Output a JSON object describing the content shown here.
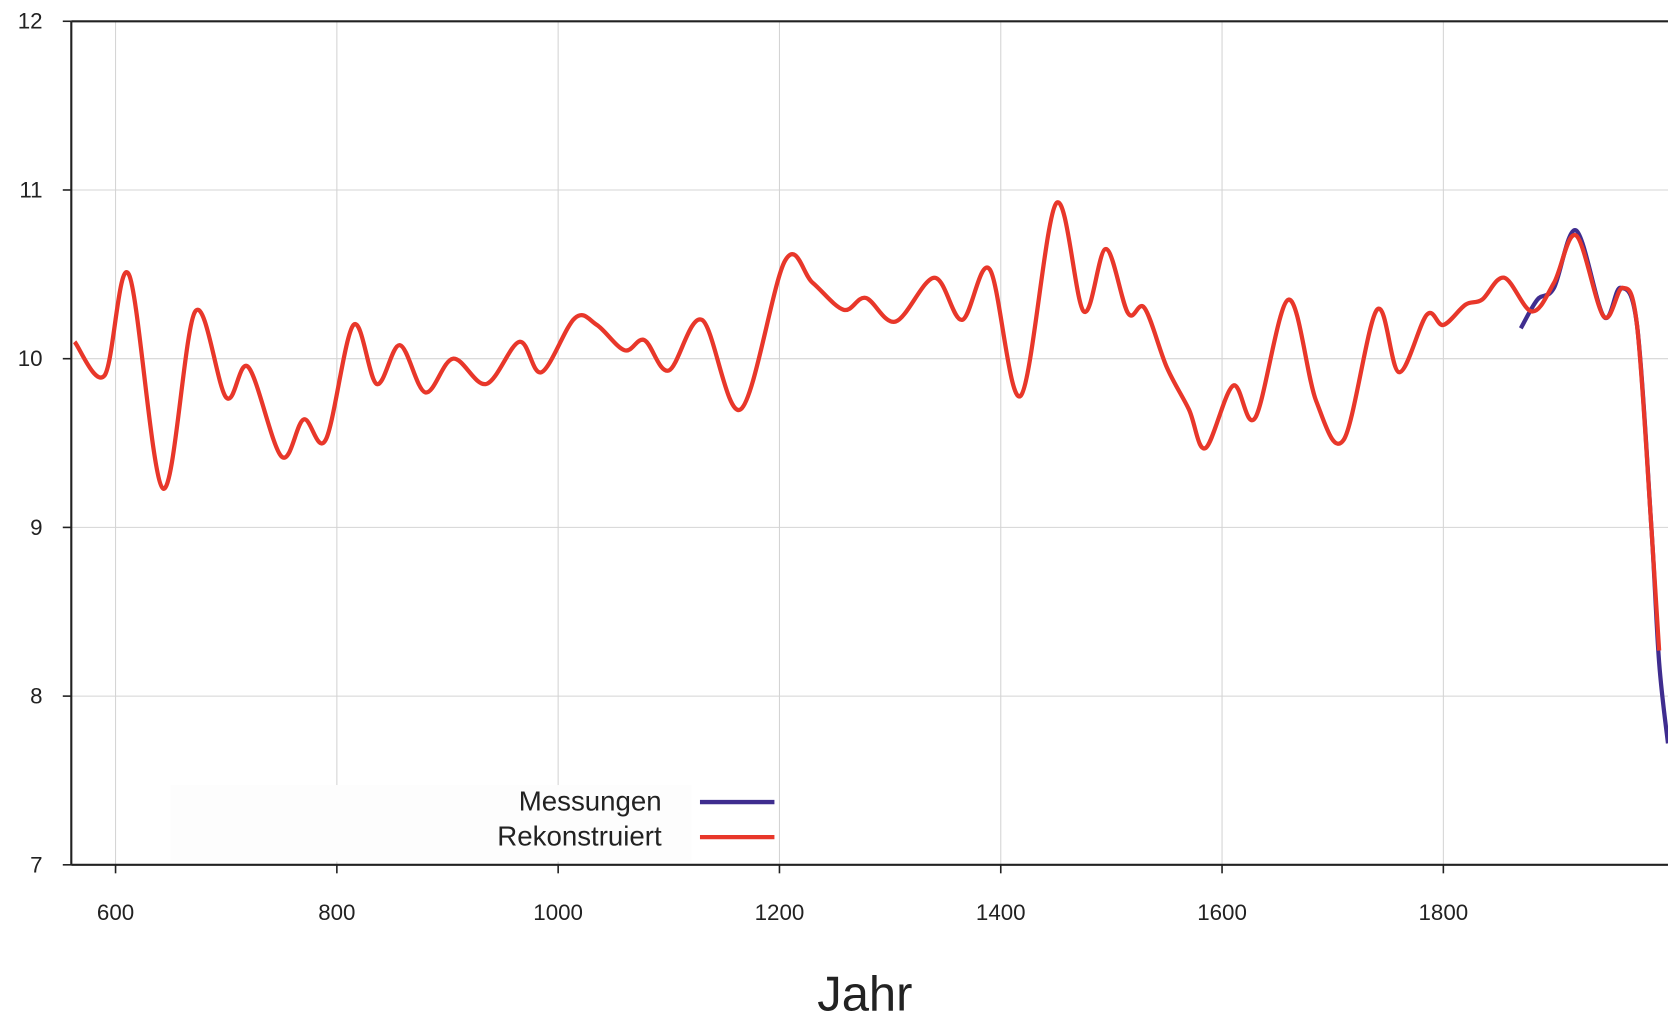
{
  "chart_data": {
    "type": "line",
    "x_label": "Jahr",
    "xlim": [
      560,
      2003
    ],
    "ylim": [
      7,
      12
    ],
    "xticks": [
      600,
      800,
      1000,
      1200,
      1400,
      1600,
      1800
    ],
    "yticks": [
      7,
      8,
      9,
      10,
      11,
      12
    ],
    "grid": true,
    "legend": "bottom-left",
    "series": [
      {
        "name": "Messungen",
        "color": "#3f2d8f",
        "x": [
          1870,
          1885,
          1900,
          1920,
          1945,
          1960,
          1975,
          1988,
          1995,
          2003
        ],
        "values": [
          10.18,
          10.35,
          10.42,
          10.76,
          10.25,
          10.42,
          10.2,
          9.0,
          8.2,
          7.72
        ]
      },
      {
        "name": "Rekonstruiert",
        "color": "#e8372a",
        "x": [
          563,
          590,
          612,
          643,
          672,
          700,
          720,
          750,
          770,
          790,
          815,
          836,
          857,
          880,
          905,
          935,
          965,
          985,
          1015,
          1035,
          1060,
          1078,
          1100,
          1130,
          1165,
          1205,
          1230,
          1258,
          1278,
          1305,
          1340,
          1365,
          1390,
          1418,
          1450,
          1475,
          1495,
          1515,
          1530,
          1550,
          1570,
          1585,
          1610,
          1630,
          1660,
          1685,
          1710,
          1740,
          1760,
          1785,
          1800,
          1820,
          1835,
          1855,
          1880,
          1900,
          1920,
          1945,
          1962,
          1975,
          1988,
          1995
        ],
        "values": [
          10.1,
          9.9,
          10.5,
          9.23,
          10.28,
          9.77,
          9.95,
          9.42,
          9.64,
          9.52,
          10.2,
          9.85,
          10.08,
          9.8,
          10.0,
          9.85,
          10.1,
          9.92,
          10.24,
          10.2,
          10.05,
          10.11,
          9.93,
          10.23,
          9.7,
          10.58,
          10.45,
          10.29,
          10.36,
          10.22,
          10.48,
          10.23,
          10.53,
          9.78,
          10.92,
          10.28,
          10.65,
          10.27,
          10.3,
          9.95,
          9.7,
          9.47,
          9.84,
          9.65,
          10.35,
          9.75,
          9.52,
          10.29,
          9.92,
          10.26,
          10.2,
          10.32,
          10.35,
          10.48,
          10.28,
          10.45,
          10.73,
          10.25,
          10.42,
          10.2,
          9.0,
          8.27
        ]
      }
    ]
  }
}
